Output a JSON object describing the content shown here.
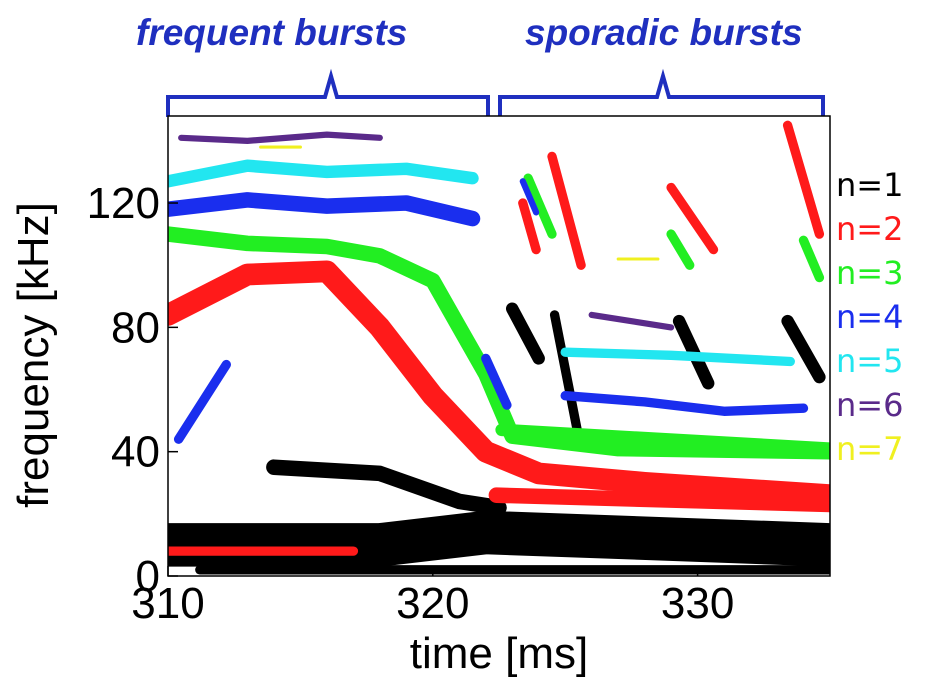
{
  "chart_data": {
    "type": "spectrogram",
    "xlabel": "time  [ms]",
    "ylabel": "frequency [kHz]",
    "xlim": [
      310,
      335
    ],
    "ylim": [
      0,
      148
    ],
    "x_ticks": [
      "310",
      "320",
      "330"
    ],
    "y_ticks": [
      "0",
      "40",
      "80",
      "120"
    ],
    "x_tick_values": [
      310,
      320,
      330
    ],
    "y_tick_values": [
      0,
      40,
      80,
      120
    ],
    "annotations": [
      {
        "text": "frequent bursts",
        "x_range": [
          310,
          322.4
        ]
      },
      {
        "text": "sporadic bursts",
        "x_range": [
          322.8,
          334.8
        ]
      }
    ],
    "annotation_color": "#1f2fbf",
    "legend": [
      {
        "label": "n=1",
        "color": "#000000"
      },
      {
        "label": "n=2",
        "color": "#ff1a1a"
      },
      {
        "label": "n=3",
        "color": "#22ee22"
      },
      {
        "label": "n=4",
        "color": "#1a2eee"
      },
      {
        "label": "n=5",
        "color": "#22e6f0"
      },
      {
        "label": "n=6",
        "color": "#5a2a8a"
      },
      {
        "label": "n=7",
        "color": "#f0f020"
      }
    ],
    "series": [
      {
        "name": "n=1",
        "bands": [
          {
            "points": [
              [
                310,
                10
              ],
              [
                318,
                10
              ],
              [
                322,
                14
              ],
              [
                335,
                10
              ]
            ],
            "width": 14
          },
          {
            "points": [
              [
                314,
                35
              ],
              [
                318,
                33
              ],
              [
                321,
                24
              ],
              [
                322.5,
                22
              ]
            ],
            "width": 5
          },
          {
            "points": [
              [
                311.2,
                2
              ],
              [
                320,
                2
              ],
              [
                335,
                2
              ]
            ],
            "width": 3
          },
          {
            "points": [
              [
                323,
                86
              ],
              [
                324,
                70
              ]
            ],
            "width": 4
          },
          {
            "points": [
              [
                324.6,
                84
              ],
              [
                325.5,
                45
              ]
            ],
            "width": 3
          },
          {
            "points": [
              [
                329.3,
                82
              ],
              [
                330.4,
                62
              ]
            ],
            "width": 4
          },
          {
            "points": [
              [
                333.4,
                82
              ],
              [
                334.6,
                64
              ]
            ],
            "width": 4
          }
        ]
      },
      {
        "name": "n=2",
        "bands": [
          {
            "points": [
              [
                310,
                8
              ],
              [
                317,
                8
              ]
            ],
            "width": 3
          },
          {
            "points": [
              [
                310,
                84
              ],
              [
                313,
                97
              ],
              [
                316,
                98
              ],
              [
                318,
                80
              ],
              [
                320,
                58
              ],
              [
                322,
                40
              ],
              [
                324,
                33
              ],
              [
                328,
                30
              ],
              [
                335,
                26
              ]
            ],
            "width": 7
          },
          {
            "points": [
              [
                322.4,
                26
              ],
              [
                335,
                23
              ]
            ],
            "width": 5
          },
          {
            "points": [
              [
                324.5,
                135
              ],
              [
                325.6,
                100
              ]
            ],
            "width": 3
          },
          {
            "points": [
              [
                329,
                125
              ],
              [
                330.6,
                105
              ]
            ],
            "width": 3
          },
          {
            "points": [
              [
                333.4,
                145
              ],
              [
                334.6,
                110
              ]
            ],
            "width": 3
          },
          {
            "points": [
              [
                323.4,
                120
              ],
              [
                323.9,
                105
              ]
            ],
            "width": 3
          }
        ]
      },
      {
        "name": "n=3",
        "bands": [
          {
            "points": [
              [
                310,
                110
              ],
              [
                313,
                107
              ],
              [
                316,
                106
              ],
              [
                318,
                103
              ],
              [
                320,
                95
              ],
              [
                321,
                80
              ],
              [
                322,
                65
              ],
              [
                323,
                45
              ],
              [
                327,
                41
              ],
              [
                335,
                40
              ]
            ],
            "width": 5
          },
          {
            "points": [
              [
                322.6,
                47
              ],
              [
                335,
                41
              ]
            ],
            "width": 4
          },
          {
            "points": [
              [
                323.6,
                128
              ],
              [
                324.5,
                110
              ]
            ],
            "width": 3
          },
          {
            "points": [
              [
                329,
                110
              ],
              [
                329.7,
                100
              ]
            ],
            "width": 3
          },
          {
            "points": [
              [
                334,
                108
              ],
              [
                334.6,
                96
              ]
            ],
            "width": 3
          }
        ]
      },
      {
        "name": "n=4",
        "bands": [
          {
            "points": [
              [
                310,
                118
              ],
              [
                313,
                121
              ],
              [
                316,
                119
              ],
              [
                319,
                120
              ],
              [
                321.5,
                115
              ]
            ],
            "width": 5
          },
          {
            "points": [
              [
                310.4,
                44
              ],
              [
                312.2,
                68
              ]
            ],
            "width": 3
          },
          {
            "points": [
              [
                322,
                70
              ],
              [
                322.8,
                55
              ]
            ],
            "width": 3
          },
          {
            "points": [
              [
                325,
                58
              ],
              [
                328,
                56
              ],
              [
                331,
                53
              ],
              [
                334,
                54
              ]
            ],
            "width": 3
          },
          {
            "points": [
              [
                323.4,
                127
              ],
              [
                323.9,
                117
              ]
            ],
            "width": 2
          }
        ]
      },
      {
        "name": "n=5",
        "bands": [
          {
            "points": [
              [
                310,
                127
              ],
              [
                313,
                132
              ],
              [
                316,
                130
              ],
              [
                319,
                131
              ],
              [
                321.5,
                128
              ]
            ],
            "width": 4
          },
          {
            "points": [
              [
                325,
                72
              ],
              [
                329,
                71
              ],
              [
                333.5,
                69
              ]
            ],
            "width": 3
          }
        ]
      },
      {
        "name": "n=6",
        "bands": [
          {
            "points": [
              [
                310.5,
                141
              ],
              [
                313,
                140
              ],
              [
                316,
                142
              ],
              [
                318,
                141
              ]
            ],
            "width": 2
          },
          {
            "points": [
              [
                326,
                84
              ],
              [
                329,
                80
              ]
            ],
            "width": 2
          }
        ]
      },
      {
        "name": "n=7",
        "bands": [
          {
            "points": [
              [
                313.5,
                138
              ],
              [
                315,
                138
              ]
            ],
            "width": 1
          },
          {
            "points": [
              [
                327,
                102
              ],
              [
                328.5,
                102
              ]
            ],
            "width": 1
          }
        ]
      }
    ]
  }
}
